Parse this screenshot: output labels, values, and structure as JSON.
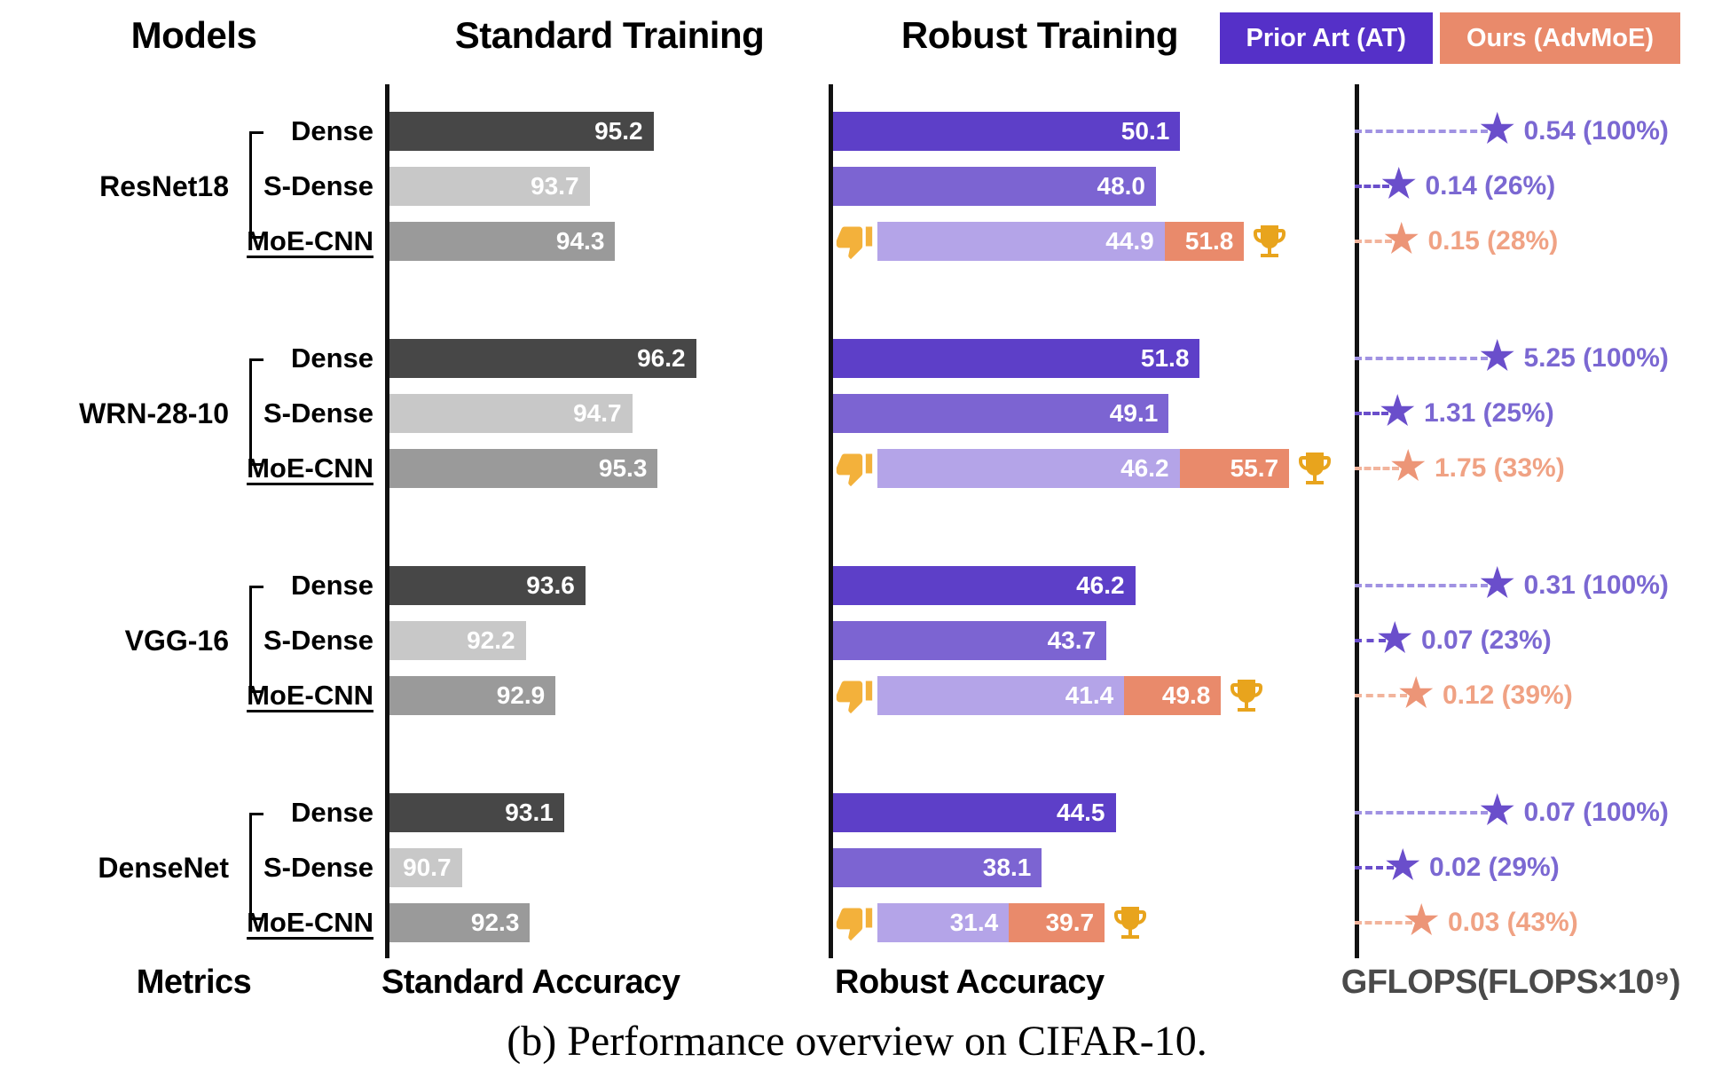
{
  "header": {
    "models_label": "Models",
    "standard_training_label": "Standard Training",
    "robust_training_label": "Robust Training",
    "legend": [
      {
        "label": "Prior Art (AT)",
        "color": "#5530c8"
      },
      {
        "label": "Ours (AdvMoE)",
        "color": "#e98a6b"
      }
    ]
  },
  "footer": {
    "metrics_label": "Metrics",
    "standard_metric": "Standard Accuracy",
    "robust_metric": "Robust Accuracy",
    "gflops_metric": "GFLOPS(FLOPS×10⁹)"
  },
  "caption": "(b) Performance overview on CIFAR-10.",
  "palette": {
    "standard_dense": "#474747",
    "standard_sdense": "#c8c8c8",
    "standard_moe": "#9a9a9a",
    "robust_dense": "#5d3fc8",
    "robust_sdense": "#7c64d2",
    "robust_moe_at": "#b4a4e8",
    "robust_ours": "#e98a6b",
    "gflops_purple": "#6a4ecb",
    "gflops_purple_text": "#7b68d2",
    "gflops_purple_dash": "#a092e2",
    "gflops_orange": "#ec9577",
    "gflops_orange_text": "#f0a284",
    "gflops_orange_dash": "#f2b49c",
    "axis": "#111111",
    "trophy_gold": "#e8a41d",
    "thumb_gold": "#f3b13b"
  },
  "chart_data": {
    "type": "bar",
    "orientation": "horizontal",
    "title": "(b) Performance overview on CIFAR-10.",
    "legend_entries": [
      "Prior Art (AT)",
      "Ours (AdvMoE)"
    ],
    "metrics": [
      "Standard Accuracy",
      "Robust Accuracy",
      "GFLOPS(FLOPS×10⁹)"
    ],
    "xlim_standard": [
      89,
      97
    ],
    "xlim_robust": [
      20,
      58
    ],
    "grid": false,
    "groups": [
      {
        "model": "ResNet18",
        "rows": [
          {
            "variant": "Dense",
            "standard_acc": "95.2",
            "robust_acc": "50.1",
            "gflops": "0.54 (100%)",
            "gflops_pct": 100
          },
          {
            "variant": "S-Dense",
            "standard_acc": "93.7",
            "robust_acc": "48.0",
            "gflops": "0.14 (26%)",
            "gflops_pct": 26
          },
          {
            "variant": "MoE-CNN",
            "standard_acc": "94.3",
            "robust_acc_at": "44.9",
            "robust_acc_ours": "51.8",
            "gflops": "0.15 (28%)",
            "gflops_pct": 28,
            "winner": true
          }
        ]
      },
      {
        "model": "WRN-28-10",
        "rows": [
          {
            "variant": "Dense",
            "standard_acc": "96.2",
            "robust_acc": "51.8",
            "gflops": "5.25 (100%)",
            "gflops_pct": 100
          },
          {
            "variant": "S-Dense",
            "standard_acc": "94.7",
            "robust_acc": "49.1",
            "gflops": "1.31 (25%)",
            "gflops_pct": 25
          },
          {
            "variant": "MoE-CNN",
            "standard_acc": "95.3",
            "robust_acc_at": "46.2",
            "robust_acc_ours": "55.7",
            "gflops": "1.75 (33%)",
            "gflops_pct": 33,
            "winner": true
          }
        ]
      },
      {
        "model": "VGG-16",
        "rows": [
          {
            "variant": "Dense",
            "standard_acc": "93.6",
            "robust_acc": "46.2",
            "gflops": "0.31 (100%)",
            "gflops_pct": 100
          },
          {
            "variant": "S-Dense",
            "standard_acc": "92.2",
            "robust_acc": "43.7",
            "gflops": "0.07 (23%)",
            "gflops_pct": 23
          },
          {
            "variant": "MoE-CNN",
            "standard_acc": "92.9",
            "robust_acc_at": "41.4",
            "robust_acc_ours": "49.8",
            "gflops": "0.12 (39%)",
            "gflops_pct": 39,
            "winner": true
          }
        ]
      },
      {
        "model": "DenseNet",
        "rows": [
          {
            "variant": "Dense",
            "standard_acc": "93.1",
            "robust_acc": "44.5",
            "gflops": "0.07 (100%)",
            "gflops_pct": 100
          },
          {
            "variant": "S-Dense",
            "standard_acc": "90.7",
            "robust_acc": "38.1",
            "gflops": "0.02 (29%)",
            "gflops_pct": 29
          },
          {
            "variant": "MoE-CNN",
            "standard_acc": "92.3",
            "robust_acc_at": "31.4",
            "robust_acc_ours": "39.7",
            "gflops": "0.03 (43%)",
            "gflops_pct": 43,
            "winner": true
          }
        ]
      }
    ]
  }
}
